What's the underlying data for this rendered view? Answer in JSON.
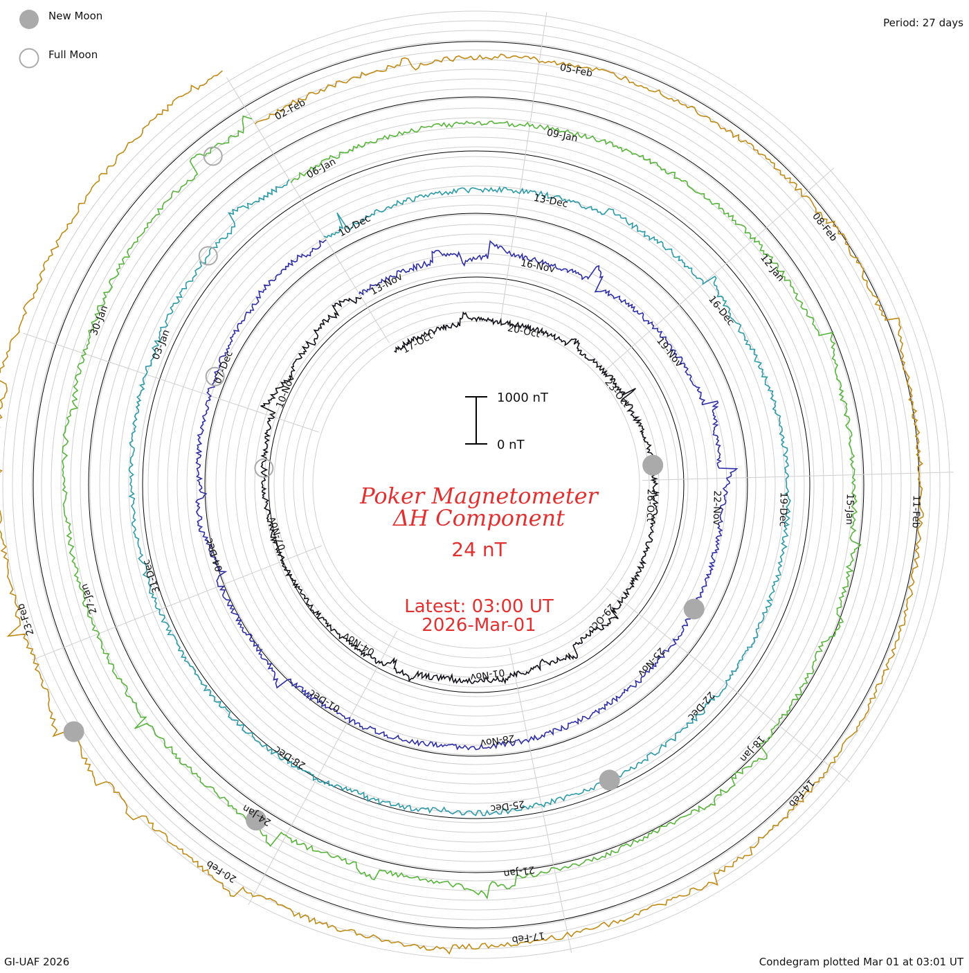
{
  "chart_data": {
    "type": "line",
    "title_line1": "Poker Magnetometer",
    "title_line2": "ΔH Component",
    "current_value": "24 nT",
    "latest_time": "Latest: 03:00 UT",
    "latest_date": "2026-Mar-01",
    "period_label": "Period: 27 days",
    "footer_left": "GI-UAF 2026",
    "footer_right": "Condegram plotted Mar 01 at 03:01 UT",
    "scale_bar": {
      "top_label": "1000 nT",
      "bottom_label": "0 nT"
    },
    "legend": [
      {
        "label": "New Moon",
        "symbol": "filled-circle"
      },
      {
        "label": "Full Moon",
        "symbol": "open-circle"
      }
    ],
    "rotations": [
      {
        "color": "#101018",
        "dates": [
          "17-Oct",
          "20-Oct",
          "23-Oct",
          "26-Oct",
          "29-Oct",
          "01-Nov",
          "04-Nov",
          "07-Nov",
          "10-Nov"
        ]
      },
      {
        "color": "#2d2ea6",
        "dates": [
          "13-Nov",
          "16-Nov",
          "19-Nov",
          "22-Nov",
          "25-Nov",
          "28-Nov",
          "01-Dec",
          "04-Dec",
          "07-Dec"
        ]
      },
      {
        "color": "#2a9aa8",
        "dates": [
          "10-Dec",
          "13-Dec",
          "16-Dec",
          "19-Dec",
          "22-Dec",
          "25-Dec",
          "28-Dec",
          "31-Dec",
          "03-Jan"
        ]
      },
      {
        "color": "#56b43a",
        "dates": [
          "06-Jan",
          "09-Jan",
          "12-Jan",
          "15-Jan",
          "18-Jan",
          "21-Jan",
          "24-Jan",
          "27-Jan",
          "30-Jan"
        ]
      },
      {
        "color": "#c08a14",
        "dates": [
          "02-Feb",
          "05-Feb",
          "08-Feb",
          "11-Feb",
          "14-Feb",
          "17-Feb",
          "20-Feb",
          "23-Feb"
        ]
      }
    ],
    "new_moons_label": "New Moon",
    "full_moons_label": "Full Moon",
    "grid": true
  }
}
